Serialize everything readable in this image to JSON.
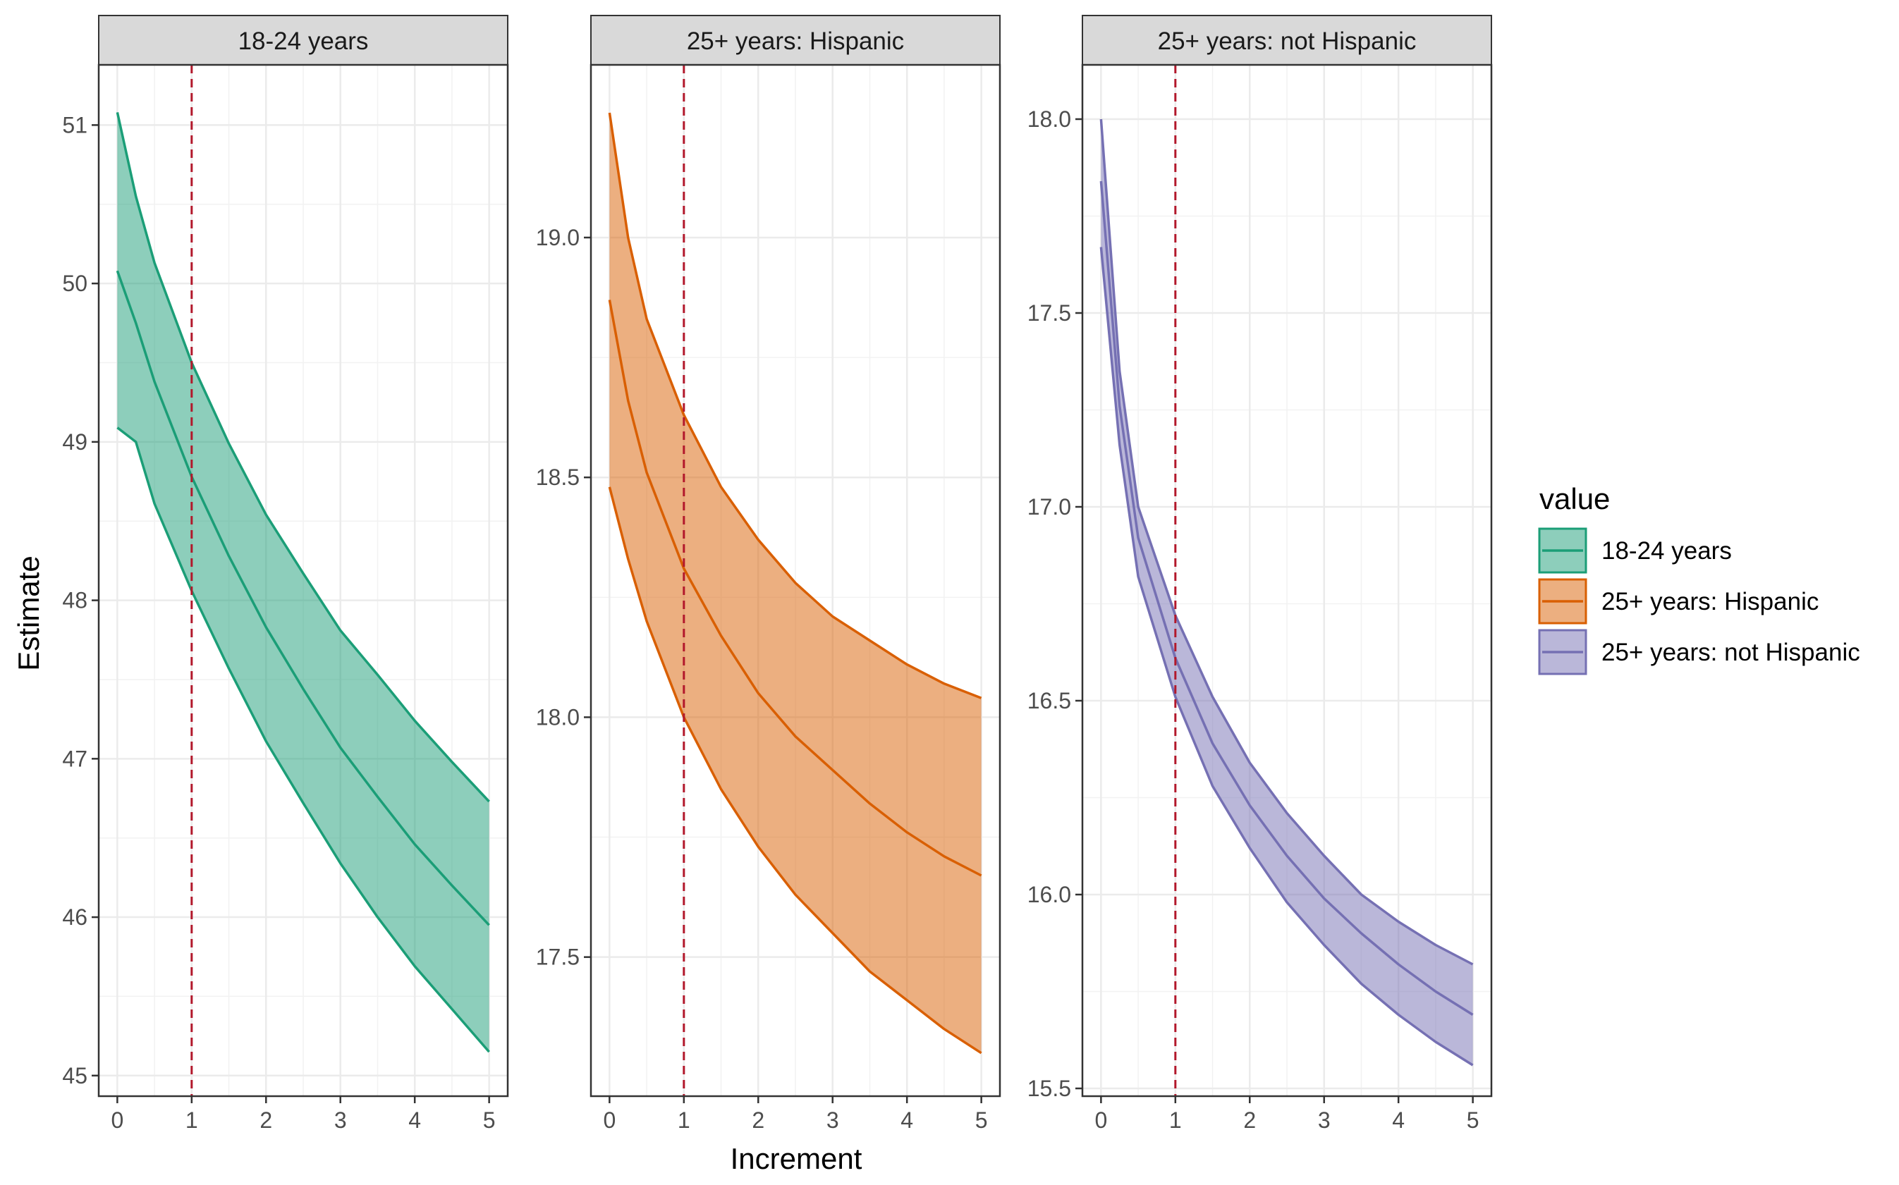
{
  "chart_data": {
    "type": "area",
    "xlabel": "Increment",
    "ylabel": "Estimate",
    "reference_line": {
      "x": 1,
      "style": "dashed",
      "color": "#b2182b"
    },
    "grid": true,
    "legend": {
      "title": "value",
      "placement": "right",
      "entries": [
        {
          "label": "18-24 years",
          "color": "#1b9e77"
        },
        {
          "label": "25+ years: Hispanic",
          "color": "#d95f02"
        },
        {
          "label": "25+ years: not Hispanic",
          "color": "#7570b3"
        }
      ]
    },
    "x": [
      0,
      0.25,
      0.5,
      1,
      1.5,
      2,
      2.5,
      3,
      3.5,
      4,
      4.5,
      5
    ],
    "xticks": [
      "0",
      "1",
      "2",
      "3",
      "4",
      "5"
    ],
    "xlim": [
      -0.25,
      5.25
    ],
    "panels": [
      {
        "strip": "18-24 years",
        "color": "#1b9e77",
        "ylim": [
          44.87,
          51.38
        ],
        "yticks": [
          {
            "value": 45,
            "label": "45"
          },
          {
            "value": 46,
            "label": "46"
          },
          {
            "value": 47,
            "label": "47"
          },
          {
            "value": 48,
            "label": "48"
          },
          {
            "value": 49,
            "label": "49"
          },
          {
            "value": 50,
            "label": "50"
          },
          {
            "value": 51,
            "label": "51"
          }
        ],
        "upper": [
          51.08,
          50.55,
          50.13,
          49.5,
          48.99,
          48.54,
          48.17,
          47.81,
          47.53,
          47.24,
          46.98,
          46.73
        ],
        "estimate": [
          50.08,
          49.75,
          49.38,
          48.78,
          48.28,
          47.83,
          47.44,
          47.07,
          46.76,
          46.46,
          46.2,
          45.95
        ],
        "lower": [
          49.09,
          49.0,
          48.61,
          48.06,
          47.57,
          47.11,
          46.72,
          46.34,
          46.0,
          45.69,
          45.42,
          45.15
        ]
      },
      {
        "strip": "25+ years: Hispanic",
        "color": "#d95f02",
        "ylim": [
          17.21,
          19.36
        ],
        "yticks": [
          {
            "value": 17.5,
            "label": "17.5"
          },
          {
            "value": 18.0,
            "label": "18.0"
          },
          {
            "value": 18.5,
            "label": "18.5"
          },
          {
            "value": 19.0,
            "label": "19.0"
          }
        ],
        "upper": [
          19.26,
          19.0,
          18.83,
          18.63,
          18.48,
          18.37,
          18.28,
          18.21,
          18.16,
          18.11,
          18.07,
          18.04
        ],
        "estimate": [
          18.87,
          18.66,
          18.51,
          18.31,
          18.17,
          18.05,
          17.96,
          17.89,
          17.82,
          17.76,
          17.71,
          17.67
        ],
        "lower": [
          18.48,
          18.33,
          18.2,
          18.0,
          17.85,
          17.73,
          17.63,
          17.55,
          17.47,
          17.41,
          17.35,
          17.3
        ]
      },
      {
        "strip": "25+ years: not Hispanic",
        "color": "#7570b3",
        "ylim": [
          15.48,
          18.14
        ],
        "yticks": [
          {
            "value": 15.5,
            "label": "15.5"
          },
          {
            "value": 16.0,
            "label": "16.0"
          },
          {
            "value": 16.5,
            "label": "16.5"
          },
          {
            "value": 17.0,
            "label": "17.0"
          },
          {
            "value": 17.5,
            "label": "17.5"
          },
          {
            "value": 18.0,
            "label": "18.0"
          }
        ],
        "upper": [
          18.0,
          17.35,
          17.0,
          16.72,
          16.51,
          16.34,
          16.21,
          16.1,
          16.0,
          15.93,
          15.87,
          15.82
        ],
        "estimate": [
          17.84,
          17.26,
          16.92,
          16.61,
          16.39,
          16.23,
          16.1,
          15.99,
          15.9,
          15.82,
          15.75,
          15.69
        ],
        "lower": [
          17.67,
          17.16,
          16.82,
          16.51,
          16.28,
          16.12,
          15.98,
          15.87,
          15.77,
          15.69,
          15.62,
          15.56
        ]
      }
    ]
  }
}
